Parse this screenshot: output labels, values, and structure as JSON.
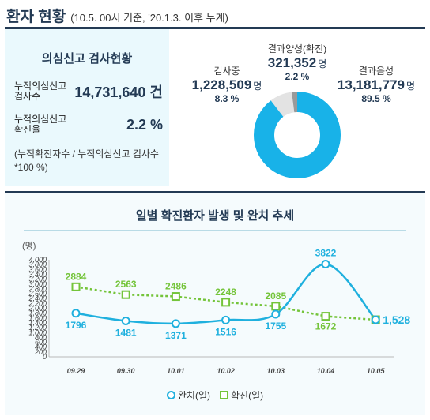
{
  "header": {
    "title": "환자 현황",
    "subtitle": "(10.5. 00시 기준, '20.1.3. 이후 누계)"
  },
  "summary": {
    "heading": "의심신고 검사현황",
    "tested_label": "누적의심신고 검사수",
    "tested_value": "14,731,640 건",
    "rate_label": "누적의심신고 확진율",
    "rate_value": "2.2 %",
    "note": "(누적확진자수 / 누적의심신고 검사수 *100 %)"
  },
  "colors": {
    "navy": "#233a54",
    "negative": "#18b2e8",
    "testing": "#e3e3e3",
    "positive": "#9a9a9a",
    "released_line": "#1fb0de",
    "confirmed_line": "#74c43a"
  },
  "donut": {
    "testing": {
      "name": "검사중",
      "count": "1,228,509",
      "unit": "명",
      "pct": "8.3 %",
      "share": 8.3
    },
    "positive": {
      "name": "결과양성(확진)",
      "count": "321,352",
      "unit": "명",
      "pct": "2.2 %",
      "share": 2.2
    },
    "negative": {
      "name": "결과음성",
      "count": "13,181,779",
      "unit": "명",
      "pct": "89.5 %",
      "share": 89.5
    }
  },
  "chart_data": {
    "type": "line",
    "title": "일별 확진환자 발생 및 완치 추세",
    "ylabel": "(명)",
    "xlabel": "",
    "ylim": [
      0,
      4000
    ],
    "yticks": [
      "0",
      "200",
      "400",
      "600",
      "800",
      "1,000",
      "1,200",
      "1,400",
      "1,600",
      "1,800",
      "2,000",
      "2,200",
      "2,400",
      "2,600",
      "2,800",
      "3,000",
      "3,200",
      "3,400",
      "3,600",
      "3,800",
      "4,000"
    ],
    "categories": [
      "09.29",
      "09.30",
      "10.01",
      "10.02",
      "10.03",
      "10.04",
      "10.05"
    ],
    "grid": false,
    "legend_position": "bottom",
    "series": [
      {
        "name": "완치(일)",
        "values": [
          1796,
          1481,
          1371,
          1516,
          1755,
          3822,
          1528
        ],
        "labels": [
          "1796",
          "1481",
          "1371",
          "1516",
          "1755",
          "3822",
          "1,528"
        ]
      },
      {
        "name": "확진(일)",
        "values": [
          2884,
          2563,
          2486,
          2248,
          2085,
          1672,
          1528
        ],
        "labels": [
          "2884",
          "2563",
          "2486",
          "2248",
          "2085",
          "1672",
          ""
        ]
      }
    ]
  }
}
